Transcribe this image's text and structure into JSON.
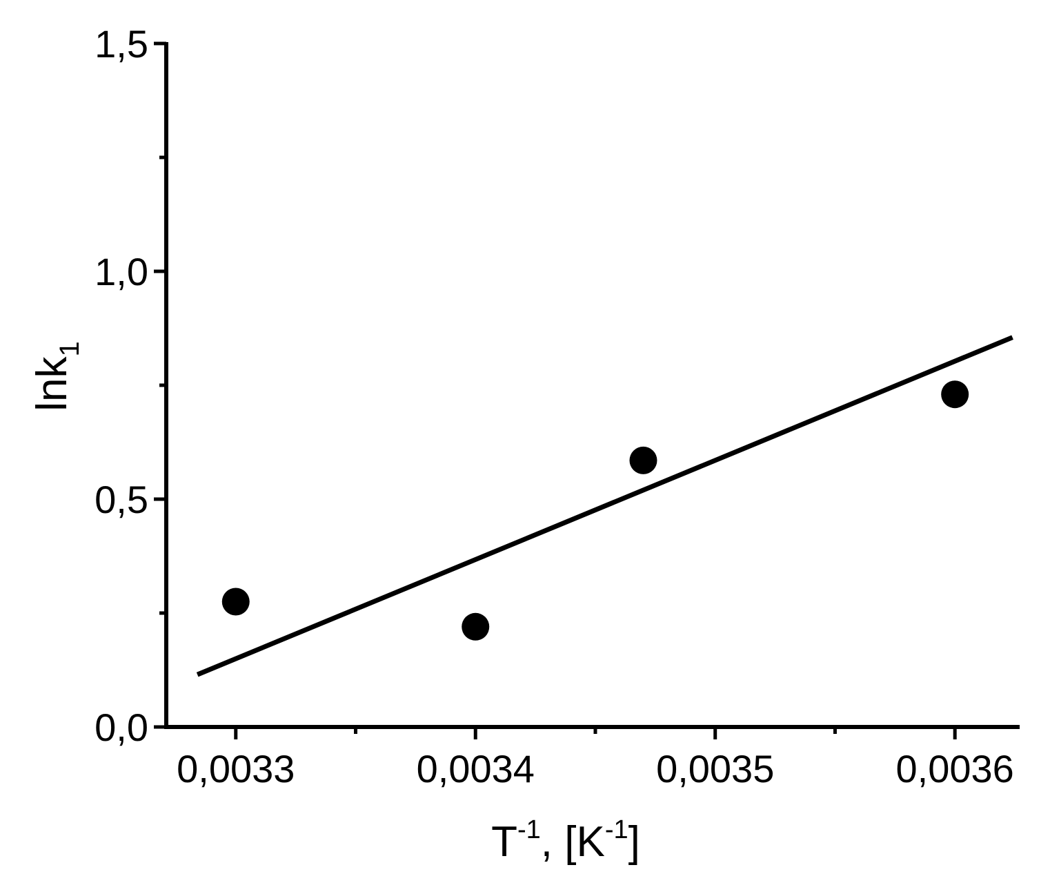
{
  "chart_data": {
    "type": "scatter",
    "title": "",
    "xlabel": {
      "base": "T",
      "sup": "-1",
      "mid": ", [K",
      "sup2": "-1",
      "end": "]"
    },
    "ylabel": {
      "base": "lnk",
      "sub": "1"
    },
    "xlim": [
      0.003271,
      0.003627
    ],
    "ylim": [
      0,
      1.5
    ],
    "x_ticks": [
      {
        "value": 0.0033,
        "label": "0,0033"
      },
      {
        "value": 0.0034,
        "label": "0,0034"
      },
      {
        "value": 0.0035,
        "label": "0,0035"
      },
      {
        "value": 0.0036,
        "label": "0,0036"
      }
    ],
    "x_minor_ticks": [
      0.00335,
      0.00345,
      0.00355
    ],
    "y_ticks": [
      {
        "value": 0.0,
        "label": "0,0"
      },
      {
        "value": 0.5,
        "label": "0,5"
      },
      {
        "value": 1.0,
        "label": "1,0"
      },
      {
        "value": 1.5,
        "label": "1,5"
      }
    ],
    "y_minor_ticks": [
      0.25,
      0.75,
      1.25
    ],
    "grid": false,
    "series": [
      {
        "kind": "points",
        "marker": "filled-circle",
        "color": "#000000",
        "x": [
          0.0033,
          0.0034,
          0.00347,
          0.0036
        ],
        "y": [
          0.275,
          0.22,
          0.585,
          0.73
        ]
      },
      {
        "kind": "fit-line",
        "color": "#000000",
        "x": [
          0.003284,
          0.003624
        ],
        "y": [
          0.115,
          0.855
        ]
      }
    ]
  }
}
